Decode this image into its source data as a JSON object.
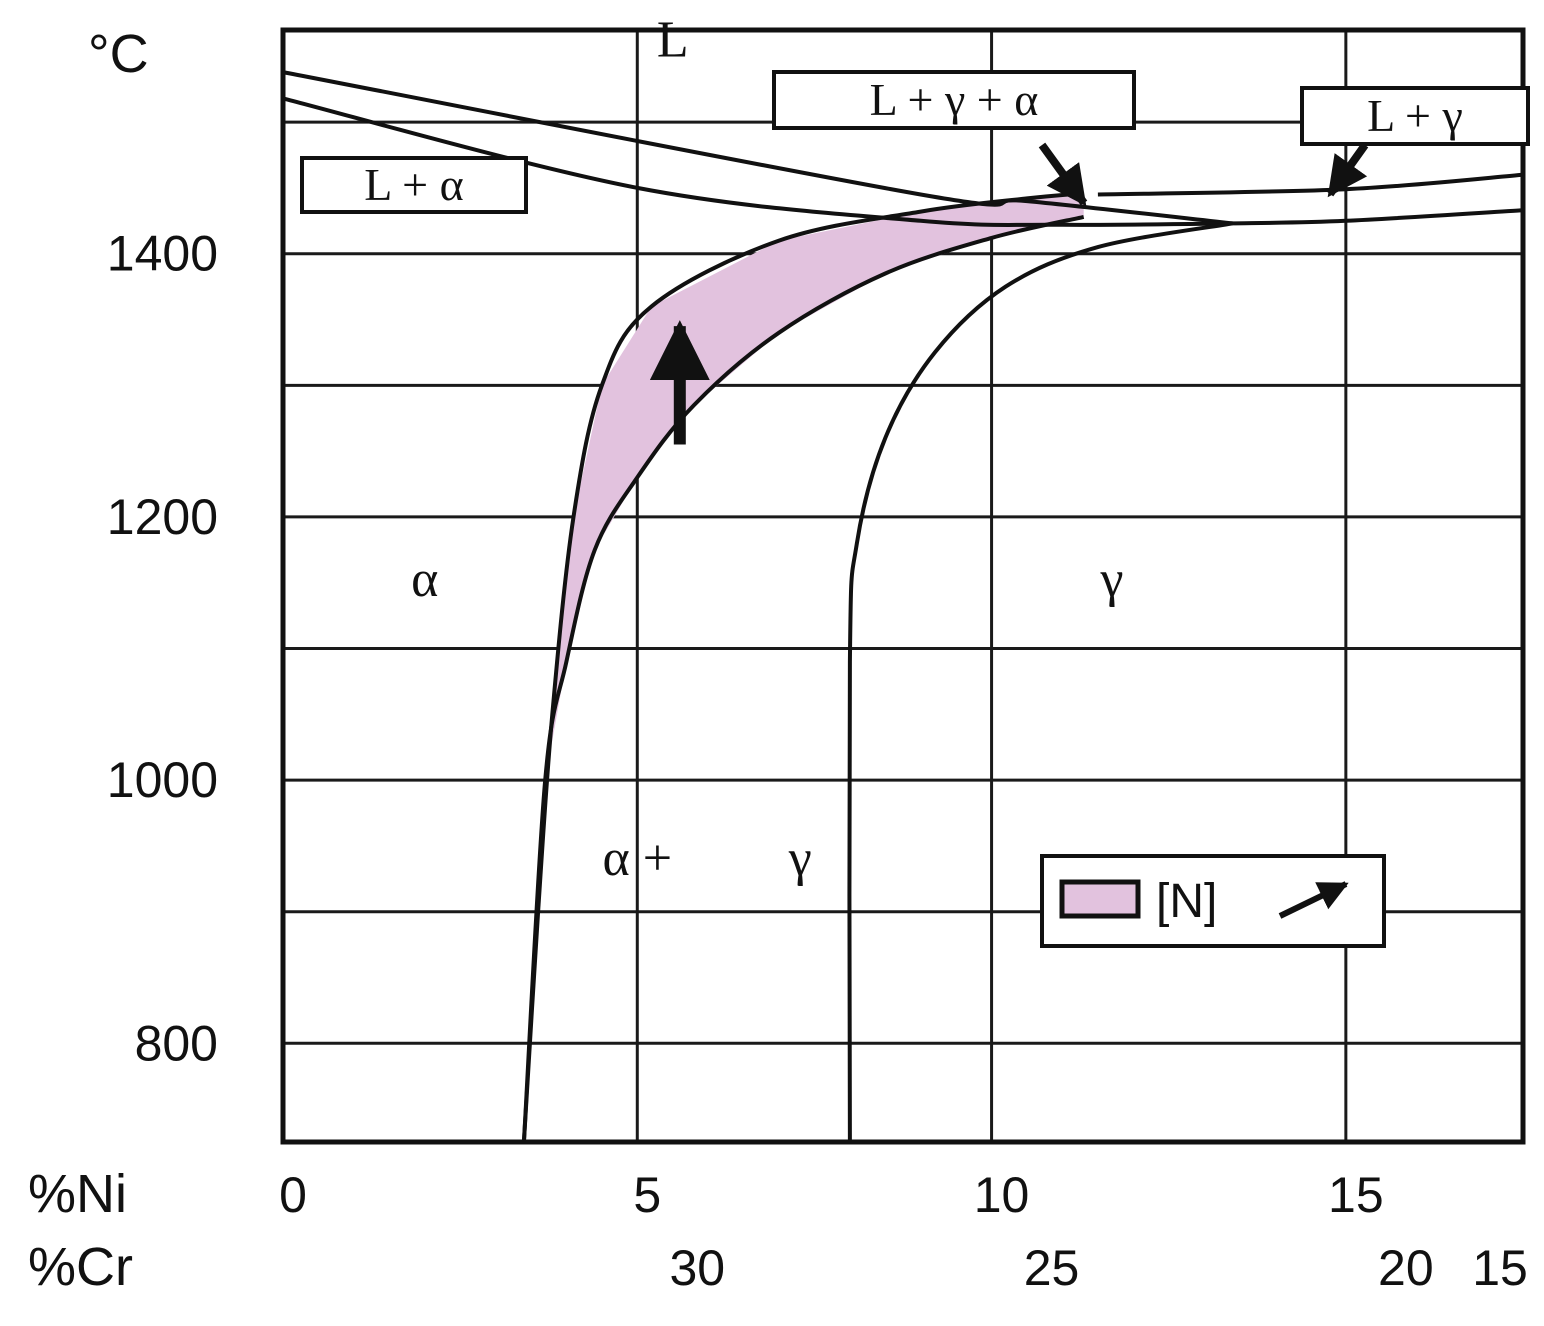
{
  "chart_data": {
    "type": "phase-diagram",
    "y_unit": "°C",
    "y_ticks": [
      {
        "value": 1400,
        "label": "1400"
      },
      {
        "value": 1200,
        "label": "1200"
      },
      {
        "value": 1000,
        "label": "1000"
      },
      {
        "value": 800,
        "label": "800"
      }
    ],
    "ylim": [
      725,
      1570
    ],
    "x_axis_ni": {
      "label": "%Ni",
      "ticks": [
        {
          "value": 0,
          "label": "0"
        },
        {
          "value": 5,
          "label": "5"
        },
        {
          "value": 10,
          "label": "10"
        },
        {
          "value": 15,
          "label": "15"
        }
      ],
      "range": [
        0,
        17.5
      ]
    },
    "x_axis_cr": {
      "label": "%Cr",
      "ticks": [
        {
          "value": 30,
          "label": "30"
        },
        {
          "value": 25,
          "label": "25"
        },
        {
          "value": 20,
          "label": "20"
        },
        {
          "value": 15,
          "label": "15"
        }
      ]
    },
    "grid": true,
    "regions": [
      {
        "id": "L",
        "label": "L",
        "ni": 5.5,
        "t": 1550
      },
      {
        "id": "alpha",
        "label": "α",
        "ni": 2.0,
        "t": 1140
      },
      {
        "id": "gamma",
        "label": "γ",
        "ni": 11.7,
        "t": 1140
      },
      {
        "id": "alpha_plus",
        "label": "α +",
        "ni": 5.0,
        "t": 928
      },
      {
        "id": "alpha_gamma_g",
        "label": "γ",
        "ni": 7.3,
        "t": 928
      }
    ],
    "boxed_labels": [
      {
        "id": "L_alpha",
        "label": "L + α"
      },
      {
        "id": "L_gamma_alpha",
        "label": "L + γ + α"
      },
      {
        "id": "L_gamma",
        "label": "L + γ"
      }
    ],
    "curves": [
      {
        "id": "liquidus_alpha",
        "points": [
          [
            0,
            1538
          ],
          [
            9.0,
            1445
          ],
          [
            10.5,
            1440
          ],
          [
            13.4,
            1423
          ]
        ]
      },
      {
        "id": "solidus_alpha",
        "points": [
          [
            0,
            1518
          ],
          [
            5.0,
            1450
          ],
          [
            9.0,
            1425
          ],
          [
            11.0,
            1422
          ],
          [
            13.4,
            1423
          ]
        ]
      },
      {
        "id": "liquidus_gamma",
        "points": [
          [
            11.5,
            1445
          ],
          [
            15.0,
            1449
          ],
          [
            17.5,
            1460
          ]
        ]
      },
      {
        "id": "solidus_gamma",
        "points": [
          [
            13.4,
            1423
          ],
          [
            15.0,
            1425
          ],
          [
            17.5,
            1433
          ]
        ]
      },
      {
        "id": "alpha_alpha_gamma_boundary",
        "points": [
          [
            3.4,
            725
          ],
          [
            3.6,
            900
          ],
          [
            3.8,
            1050
          ],
          [
            4.1,
            1200
          ],
          [
            4.5,
            1300
          ],
          [
            5.2,
            1360
          ],
          [
            7.0,
            1410
          ],
          [
            9.0,
            1432
          ],
          [
            10.5,
            1442
          ],
          [
            11.3,
            1446
          ]
        ]
      },
      {
        "id": "gamma_alpha_gamma_boundary",
        "points": [
          [
            8.0,
            725
          ],
          [
            8.0,
            1090
          ],
          [
            8.1,
            1180
          ],
          [
            8.5,
            1260
          ],
          [
            9.2,
            1325
          ],
          [
            10.2,
            1375
          ],
          [
            11.5,
            1405
          ],
          [
            13.4,
            1423
          ]
        ]
      },
      {
        "id": "nitrogen_shifted_boundary",
        "points": [
          [
            3.4,
            725
          ],
          [
            3.7,
            1000
          ],
          [
            4.0,
            1090
          ],
          [
            4.4,
            1175
          ],
          [
            5.0,
            1230
          ],
          [
            5.8,
            1285
          ],
          [
            7.0,
            1340
          ],
          [
            8.5,
            1385
          ],
          [
            10.0,
            1412
          ],
          [
            11.3,
            1428
          ]
        ]
      }
    ],
    "shaded_band": {
      "between": [
        "alpha_alpha_gamma_boundary",
        "nitrogen_shifted_boundary"
      ],
      "color": "#e2c2de"
    },
    "band_arrow": {
      "ni": 5.6,
      "t_from": 1255,
      "t_to": 1345
    },
    "legend": {
      "label": "[N]",
      "swatch_color": "#e2c2de",
      "placement": "lower-right"
    }
  }
}
